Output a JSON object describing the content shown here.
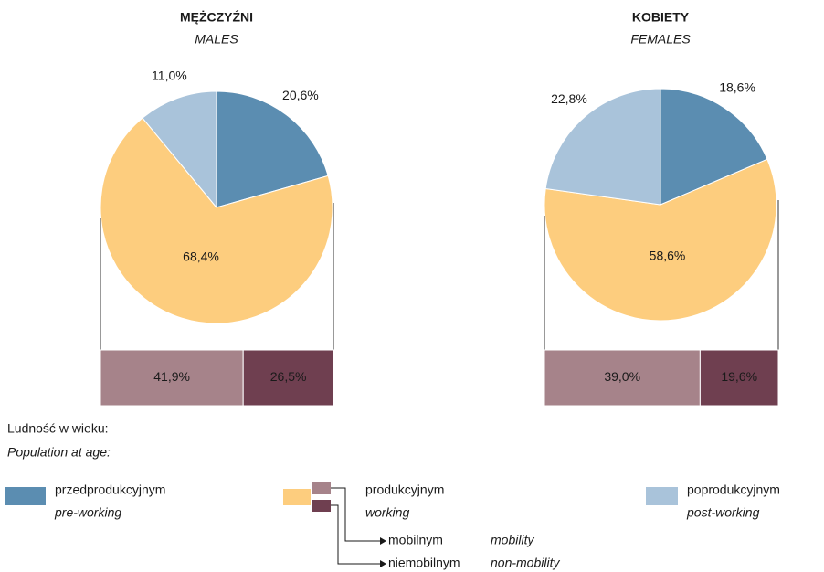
{
  "chart_data": [
    {
      "type": "pie",
      "title": "MĘŻCZYŹNI",
      "subtitle": "MALES",
      "values": [
        20.6,
        68.4,
        11.0
      ],
      "value_labels": [
        "20,6%",
        "68,4%",
        "11,0%"
      ],
      "breakdown": {
        "values": [
          41.9,
          26.5
        ],
        "value_labels": [
          "41,9%",
          "26,5%"
        ]
      }
    },
    {
      "type": "pie",
      "title": "KOBIETY",
      "subtitle": "FEMALES",
      "values": [
        18.6,
        58.6,
        22.8
      ],
      "value_labels": [
        "18,6%",
        "58,6%",
        "22,8%"
      ],
      "breakdown": {
        "values": [
          39.0,
          19.6
        ],
        "value_labels": [
          "39,0%",
          "19,6%"
        ]
      }
    }
  ],
  "legend": {
    "title": "Ludność w wieku:",
    "subtitle": "Population at age:",
    "categories": [
      "przedprodukcyjnym",
      "produkcyjnym",
      "poprodukcyjnym"
    ],
    "translations": [
      "pre-working",
      "working",
      "post-working"
    ],
    "colors": [
      "#5b8db1",
      "#fdcd7e",
      "#a9c3da"
    ],
    "breakdown_categories": [
      "mobilnym",
      "niemobilnym"
    ],
    "breakdown_translations": [
      "mobility",
      "non-mobility"
    ],
    "breakdown_colors": [
      "#a6838a",
      "#6f3f50"
    ]
  }
}
